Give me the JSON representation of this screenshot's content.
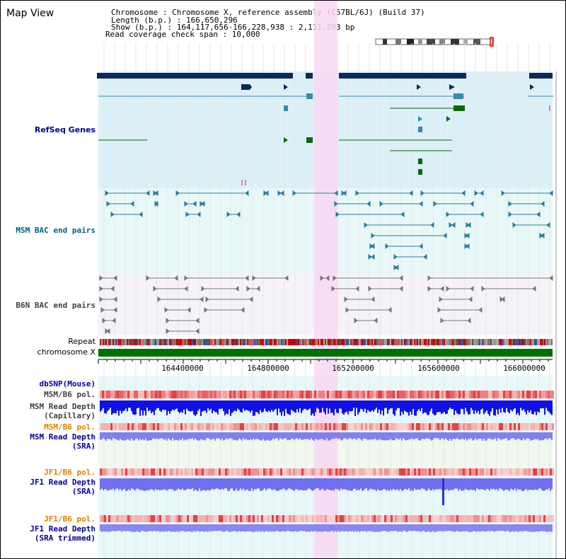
{
  "title": "Map View",
  "info": {
    "line1": "Chromosome    : Chromosome X, reference assembly (C57BL/6J) (Build 37)",
    "line2": "Length (b.p.) : 166,650,296",
    "line3": " Show (b.p.) : 164,117,656-166,228,938 : 2,111,283 bp",
    "line4": "Read coverage check span : 10,000"
  },
  "tracks": {
    "refseq": "RefSeq Genes",
    "msm_bac": "MSM BAC end pairs",
    "b6n_bac": "B6N BAC end pairs",
    "repeat": "Repeat",
    "chromosome": "chromosome X",
    "dbsnp": "dbSNP(Mouse)",
    "msm_b6_pol_1": "MSM/B6 pol.",
    "msm_depth_cap_1": "MSM Read Depth",
    "msm_depth_cap_2": "(Capillary)",
    "msm_b6_pol_2": "MSM/B6 pol.",
    "msm_depth_sra_1": "MSM Read Depth",
    "msm_depth_sra_2": "(SRA)",
    "jf1_b6_pol_1": "JF1/B6 pol.",
    "jf1_depth_sra_1": "JF1 Read Depth",
    "jf1_depth_sra_2": "(SRA)",
    "jf1_b6_pol_2": "JF1/B6 pol.",
    "jf1_depth_trim_1": "JF1 Read Depth",
    "jf1_depth_trim_2": "(SRA trimmed)"
  },
  "ruler": {
    "ticks": [
      "164400000",
      "164800000",
      "165200000",
      "165600000",
      "166000000"
    ]
  },
  "colors": {
    "refseq_bg": "#dcf0f8",
    "msm_bg": "#e8f8f8",
    "b6n_bg": "#f4f4f8",
    "highlight": "#f8d8f4",
    "gene_dark": "#0a2a5a",
    "gene_teal": "#3a8aa8",
    "gene_green": "#0a6a0a",
    "chromosome": "#007000",
    "label_blue": "#0000a0",
    "label_teal": "#006080",
    "label_gray": "#404040",
    "label_orange": "#e08000"
  }
}
